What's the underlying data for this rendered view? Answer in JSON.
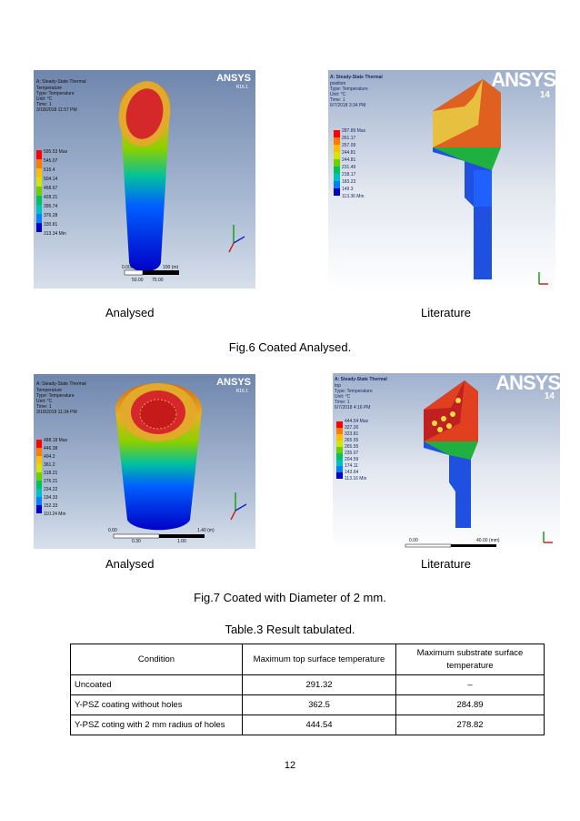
{
  "figures": [
    {
      "caption": "Fig.6 Coated Analysed.",
      "left_label": "Analysed",
      "right_label": "Literature",
      "left_panel": {
        "title": "A: Steady-State Thermal",
        "lines": [
          "Temperature",
          "Type: Temperature",
          "Unit: °C",
          "Time: 1",
          "3/18/2018 11:57 PM"
        ],
        "legend": [
          "595.53 Max",
          "545.07",
          "515.4",
          "504.14",
          "458.67",
          "428.21",
          "395.74",
          "376.28",
          "330.81",
          "313.34 Min"
        ],
        "logo": "ANSYS",
        "logo_sub": "R16.1",
        "scale": [
          "0.000",
          "100 (m)",
          "50.00",
          "75.00"
        ]
      },
      "right_panel": {
        "title": "A: Steady-State Thermal",
        "lines": [
          "position",
          "Type: Temperature",
          "Unit: °C",
          "Time: 1",
          "6/7/2018 3:34 PM"
        ],
        "legend": [
          "287.89 Max",
          "261.17",
          "257.99",
          "244.81",
          "244.81",
          "231.49",
          "218.17",
          "183.23",
          "149.3",
          "113.36 Min"
        ],
        "logo": "ANSYS",
        "logo_sub": "14"
      }
    },
    {
      "caption": "Fig.7 Coated with Diameter of 2 mm.",
      "left_label": "Analysed",
      "right_label": "Literature",
      "left_panel": {
        "title": "A: Steady-State Thermal",
        "lines": [
          "Temperature",
          "Type: Temperature",
          "Unit: °C",
          "Time: 1",
          "3/18/2018 11:34 PM"
        ],
        "legend": [
          "488.18 Max",
          "446.38",
          "404.2",
          "361.2",
          "318.21",
          "276.21",
          "234.22",
          "194.33",
          "152.33",
          "110.24 Min"
        ],
        "logo": "ANSYS",
        "logo_sub": "R16.1",
        "scale": [
          "0.00",
          "1.40 (m)",
          "0.30",
          "1.00"
        ]
      },
      "right_panel": {
        "title": "A: Steady-State Thermal",
        "lines": [
          "top",
          "Type: Temperature",
          "Unit: °C",
          "Time: 1",
          "6/7/2018 4:16 PM"
        ],
        "legend": [
          "444.54 Max",
          "327.26",
          "323.81",
          "265.55",
          "265.55",
          "235.07",
          "204.59",
          "174.11",
          "143.64",
          "113.16 Min"
        ],
        "logo": "ANSYS",
        "logo_sub": "14",
        "scale": [
          "0.00",
          "40.00 (mm)"
        ]
      }
    }
  ],
  "table": {
    "caption": "Table.3 Result tabulated.",
    "headers": [
      "Condition",
      "Maximum top surface temperature",
      "Maximum substrate surface temperature"
    ],
    "rows": [
      [
        "Uncoated",
        "291.32",
        "–"
      ],
      [
        "Y-PSZ coating without holes",
        "362.5",
        "284.89"
      ],
      [
        "Y-PSZ coting with 2 mm radius of holes",
        "444.54",
        "278.82"
      ]
    ]
  },
  "page_number": "12",
  "colors": {
    "ansys_bg_left": "#7a8fb0",
    "ansys_bg_right": "#cfd8e6",
    "temp_scale": [
      "#ff0000",
      "#ff7a00",
      "#ffbf00",
      "#d4e600",
      "#6bd000",
      "#00c060",
      "#00c0c0",
      "#0080ff",
      "#0040ff",
      "#0000c0"
    ]
  }
}
